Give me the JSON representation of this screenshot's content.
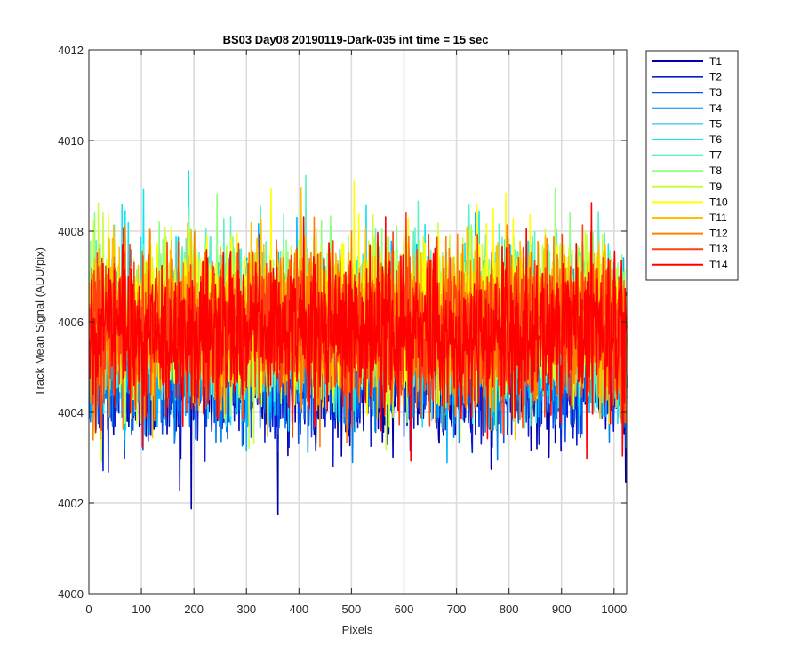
{
  "chart_data": {
    "type": "line",
    "title": "BS03 Day08 20190119-Dark-035 int time = 15 sec",
    "xlabel": "Pixels",
    "ylabel": "Track Mean Signal (ADU/pix)",
    "xlim": [
      0,
      1024
    ],
    "ylim": [
      4000,
      4012
    ],
    "xticks": [
      0,
      100,
      200,
      300,
      400,
      500,
      600,
      700,
      800,
      900,
      1000
    ],
    "yticks": [
      4000,
      4002,
      4004,
      4006,
      4008,
      4010,
      4012
    ],
    "grid": true,
    "legend_position": "outside-top-right",
    "n_points": 1024,
    "series": [
      {
        "name": "T1",
        "color": "#0000aa",
        "mean": 4004.9,
        "noise": 0.75
      },
      {
        "name": "T2",
        "color": "#0a1ed0",
        "mean": 4005.0,
        "noise": 0.75
      },
      {
        "name": "T3",
        "color": "#0a50e6",
        "mean": 4005.1,
        "noise": 0.75
      },
      {
        "name": "T4",
        "color": "#0080f0",
        "mean": 4005.3,
        "noise": 0.78
      },
      {
        "name": "T5",
        "color": "#00b4ff",
        "mean": 4005.6,
        "noise": 0.8
      },
      {
        "name": "T6",
        "color": "#10e6f0",
        "mean": 4005.9,
        "noise": 0.85
      },
      {
        "name": "T7",
        "color": "#60f0c8",
        "mean": 4006.0,
        "noise": 0.85
      },
      {
        "name": "T8",
        "color": "#90ff80",
        "mean": 4006.1,
        "noise": 0.85
      },
      {
        "name": "T9",
        "color": "#c8ff40",
        "mean": 4006.1,
        "noise": 0.85
      },
      {
        "name": "T10",
        "color": "#ffff00",
        "mean": 4006.1,
        "noise": 0.85
      },
      {
        "name": "T11",
        "color": "#ffc000",
        "mean": 4006.0,
        "noise": 0.85
      },
      {
        "name": "T12",
        "color": "#ff8000",
        "mean": 4005.9,
        "noise": 0.85
      },
      {
        "name": "T13",
        "color": "#ff4010",
        "mean": 4005.8,
        "noise": 0.85
      },
      {
        "name": "T14",
        "color": "#ff0000",
        "mean": 4005.7,
        "noise": 0.85
      }
    ]
  }
}
